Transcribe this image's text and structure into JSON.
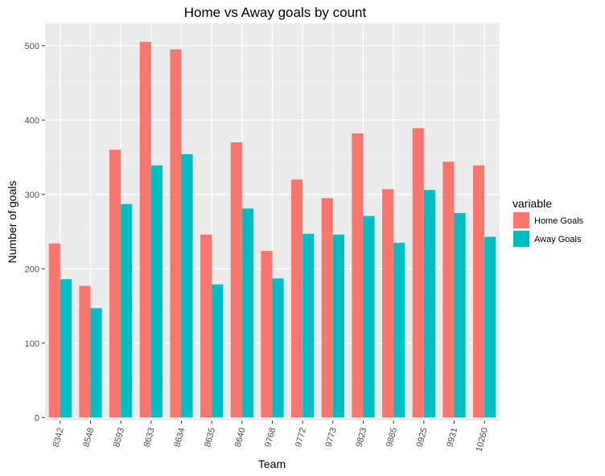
{
  "chart_data": {
    "type": "bar",
    "title": "Home vs Away goals by count",
    "xlabel": "Team",
    "ylabel": "Number of goals",
    "categories": [
      "8342",
      "8548",
      "8593",
      "8633",
      "8634",
      "8635",
      "8640",
      "9768",
      "9772",
      "9773",
      "9823",
      "9885",
      "9925",
      "9931",
      "10260"
    ],
    "series": [
      {
        "name": "Home Goals",
        "color": "#F8766D",
        "values": [
          234,
          177,
          360,
          505,
          495,
          246,
          370,
          224,
          320,
          295,
          382,
          307,
          389,
          344,
          339
        ]
      },
      {
        "name": "Away Goals",
        "color": "#00BFC4",
        "values": [
          186,
          147,
          287,
          339,
          354,
          179,
          281,
          187,
          247,
          246,
          271,
          235,
          306,
          275,
          243
        ]
      }
    ],
    "ylim": [
      -4,
      530
    ],
    "yticks": [
      0,
      100,
      200,
      300,
      400,
      500
    ],
    "grid": true,
    "legend": {
      "title": "variable",
      "position": "right"
    },
    "panel_background": "#EBEBEB"
  }
}
